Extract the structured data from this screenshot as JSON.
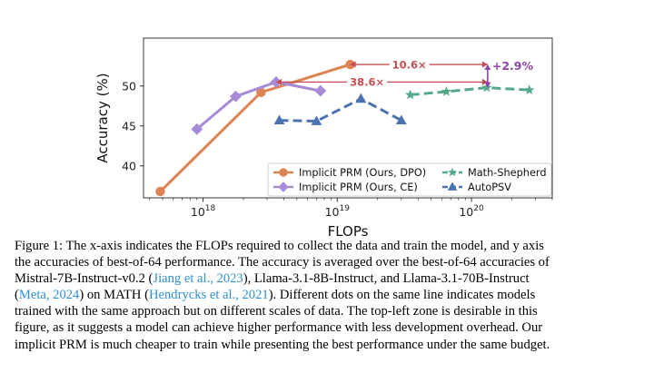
{
  "chart_data": {
    "type": "line",
    "xscale": "log",
    "xlabel": "FLOPs",
    "ylabel": "Accuracy (%)",
    "xlim": [
      3.6e+17,
      4e+20
    ],
    "ylim": [
      36,
      56
    ],
    "x_ticks": [
      {
        "value": 1e+18,
        "base": "10",
        "exp": "18"
      },
      {
        "value": 1e+19,
        "base": "10",
        "exp": "19"
      },
      {
        "value": 1e+20,
        "base": "10",
        "exp": "20"
      }
    ],
    "y_ticks": [
      40,
      45,
      50
    ],
    "grid": false,
    "legend_position": "lower-right",
    "series": [
      {
        "name": "Implicit PRM (Ours, DPO)",
        "color": "#dd8452",
        "marker": "circle",
        "dash": false,
        "x": [
          4.8e+17,
          2.7e+18,
          1.25e+19
        ],
        "y": [
          36.8,
          49.2,
          52.7
        ]
      },
      {
        "name": "Implicit PRM (Ours, CE)",
        "color": "#a78bd6",
        "marker": "diamond",
        "dash": false,
        "x": [
          9e+17,
          1.75e+18,
          3.5e+18,
          7.5e+18
        ],
        "y": [
          44.6,
          48.7,
          50.5,
          49.4
        ]
      },
      {
        "name": "Math-Shepherd",
        "color": "#55a888",
        "marker": "star",
        "dash": true,
        "x": [
          3.5e+19,
          6.5e+19,
          1.3e+20,
          2.7e+20
        ],
        "y": [
          48.9,
          49.3,
          49.8,
          49.5
        ]
      },
      {
        "name": "AutoPSV",
        "color": "#4c72b0",
        "marker": "triangle",
        "dash": true,
        "x": [
          3.7e+18,
          7e+18,
          1.5e+19,
          3e+19
        ],
        "y": [
          45.7,
          45.6,
          48.4,
          45.7
        ]
      }
    ],
    "annotations": [
      {
        "label": "10.6×",
        "color": "#c44e52",
        "y": 52.7,
        "x_from": 1.25e+19,
        "x_to": 1.32e+20
      },
      {
        "label": "38.6×",
        "color": "#c44e52",
        "y": 50.5,
        "x_from": 3.5e+18,
        "x_to": 1.32e+20
      },
      {
        "label": "+2.9%",
        "color": "#8c44a8",
        "x": 1.32e+20,
        "y_from": 49.8,
        "y_to": 52.7
      }
    ]
  },
  "caption": {
    "lines": [
      [
        {
          "t": "Figure 1: The x-axis indicates the FLOPs required to collect the data and train the model, and y axis"
        }
      ],
      [
        {
          "t": "the accuracies of best-of-64 performance. The accuracy is averaged over the best-of-64 accuracies of"
        }
      ],
      [
        {
          "t": "Mistral-7B-Instruct-v0.2 ("
        },
        {
          "t": "Jiang et al., 2023",
          "c": 1
        },
        {
          "t": "), Llama-3.1-8B-Instruct, and Llama-3.1-70B-Instruct"
        }
      ],
      [
        {
          "t": "("
        },
        {
          "t": "Meta, 2024",
          "c": 1
        },
        {
          "t": ") on MATH ("
        },
        {
          "t": "Hendrycks et al., 2021",
          "c": 1
        },
        {
          "t": "). Different dots on the same line indicates models"
        }
      ],
      [
        {
          "t": "trained with the same approach but on different scales of data. The top-left zone is desirable in this"
        }
      ],
      [
        {
          "t": "figure, as it suggests a model can achieve higher performance with less development overhead. Our"
        }
      ],
      [
        {
          "t": "implicit PRM is much cheaper to train while presenting the best performance under the same budget."
        }
      ]
    ]
  }
}
